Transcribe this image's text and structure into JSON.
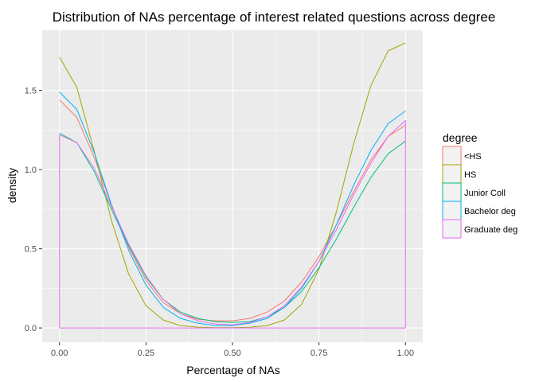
{
  "chart_data": {
    "type": "line",
    "title": "Distribution of NAs percentage of interest related questions across degree",
    "xlabel": "Percentage of NAs",
    "ylabel": "density",
    "xlim": [
      -0.05,
      1.05
    ],
    "ylim": [
      -0.09,
      1.88
    ],
    "x_ticks": [
      0.0,
      0.25,
      0.5,
      0.75,
      1.0
    ],
    "x_tick_labels": [
      "0.00",
      "0.25",
      "0.50",
      "0.75",
      "1.00"
    ],
    "y_ticks": [
      0.0,
      0.5,
      1.0,
      1.5
    ],
    "y_tick_labels": [
      "0.0",
      "0.5",
      "1.0",
      "1.5"
    ],
    "grid": true,
    "legend": {
      "title": "degree",
      "position": "right"
    },
    "series": [
      {
        "name": "<HS",
        "color": "#F8766D",
        "x": [
          0.0,
          0.05,
          0.1,
          0.15,
          0.2,
          0.25,
          0.3,
          0.35,
          0.4,
          0.45,
          0.5,
          0.55,
          0.6,
          0.65,
          0.7,
          0.75,
          0.8,
          0.85,
          0.9,
          0.95,
          1.0
        ],
        "y": [
          1.44,
          1.33,
          1.08,
          0.78,
          0.51,
          0.3,
          0.16,
          0.09,
          0.055,
          0.045,
          0.045,
          0.06,
          0.1,
          0.17,
          0.29,
          0.45,
          0.65,
          0.86,
          1.06,
          1.21,
          1.28
        ]
      },
      {
        "name": "HS",
        "color": "#A3A500",
        "x": [
          0.0,
          0.05,
          0.1,
          0.15,
          0.2,
          0.25,
          0.3,
          0.35,
          0.4,
          0.45,
          0.5,
          0.55,
          0.6,
          0.65,
          0.7,
          0.75,
          0.8,
          0.85,
          0.9,
          0.95,
          1.0
        ],
        "y": [
          1.71,
          1.52,
          1.12,
          0.68,
          0.34,
          0.14,
          0.05,
          0.015,
          0.005,
          0.002,
          0.002,
          0.004,
          0.015,
          0.05,
          0.15,
          0.37,
          0.73,
          1.16,
          1.53,
          1.75,
          1.8
        ]
      },
      {
        "name": "Junior Coll",
        "color": "#00BF7D",
        "x": [
          0.0,
          0.05,
          0.1,
          0.15,
          0.2,
          0.25,
          0.3,
          0.35,
          0.4,
          0.45,
          0.5,
          0.55,
          0.6,
          0.65,
          0.7,
          0.75,
          0.8,
          0.85,
          0.9,
          0.95,
          1.0
        ],
        "y": [
          1.23,
          1.17,
          0.99,
          0.75,
          0.52,
          0.32,
          0.18,
          0.1,
          0.06,
          0.04,
          0.035,
          0.04,
          0.07,
          0.13,
          0.23,
          0.38,
          0.56,
          0.76,
          0.95,
          1.1,
          1.18
        ]
      },
      {
        "name": "Bachelor deg",
        "color": "#00B0F6",
        "x": [
          0.0,
          0.05,
          0.1,
          0.15,
          0.2,
          0.25,
          0.3,
          0.35,
          0.4,
          0.45,
          0.5,
          0.55,
          0.6,
          0.65,
          0.7,
          0.75,
          0.8,
          0.85,
          0.9,
          0.95,
          1.0
        ],
        "y": [
          1.49,
          1.38,
          1.11,
          0.78,
          0.49,
          0.27,
          0.13,
          0.06,
          0.03,
          0.015,
          0.015,
          0.03,
          0.06,
          0.13,
          0.25,
          0.42,
          0.65,
          0.9,
          1.12,
          1.29,
          1.37
        ]
      },
      {
        "name": "Graduate deg",
        "color": "#E76BF3",
        "x": [
          0.0,
          0.0,
          0.05,
          0.1,
          0.15,
          0.2,
          0.25,
          0.3,
          0.35,
          0.4,
          0.45,
          0.5,
          0.55,
          0.6,
          0.65,
          0.7,
          0.75,
          0.8,
          0.85,
          0.9,
          0.95,
          1.0,
          1.0,
          0.0
        ],
        "y": [
          0.0,
          1.22,
          1.17,
          1.01,
          0.77,
          0.53,
          0.33,
          0.18,
          0.09,
          0.045,
          0.025,
          0.02,
          0.035,
          0.07,
          0.14,
          0.26,
          0.42,
          0.62,
          0.84,
          1.04,
          1.21,
          1.31,
          0.0,
          0.0
        ]
      }
    ]
  }
}
